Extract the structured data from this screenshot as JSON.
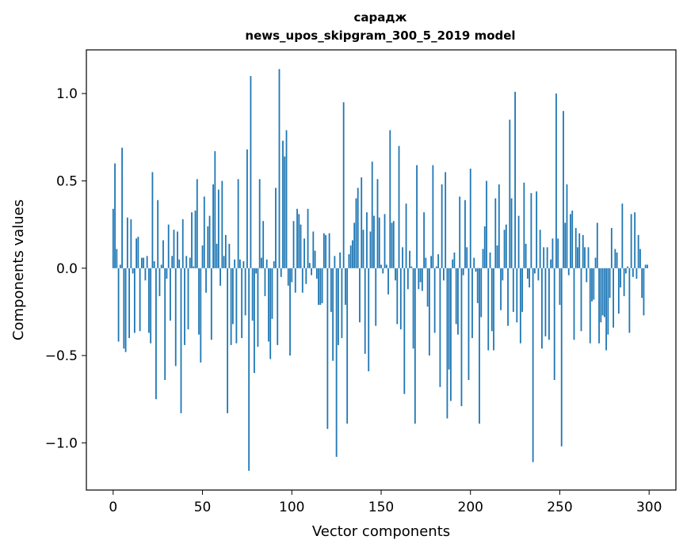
{
  "chart_data": {
    "type": "bar",
    "title": "сарадж",
    "subtitle": "news_upos_skipgram_300_5_2019 model",
    "xlabel": "Vector components",
    "ylabel": "Components values",
    "xlim": [
      -15,
      315
    ],
    "ylim": [
      -1.27,
      1.25
    ],
    "xticks": [
      0,
      50,
      100,
      150,
      200,
      250,
      300
    ],
    "yticks": [
      -1.0,
      -0.5,
      0.0,
      0.5,
      1.0
    ],
    "ytick_labels": [
      "−1.0",
      "−0.5",
      "0.0",
      "0.5",
      "1.0"
    ],
    "bar_color": "#1f77b4",
    "grid": false,
    "values": [
      0.34,
      0.6,
      0.11,
      -0.42,
      0.02,
      0.69,
      -0.46,
      -0.48,
      0.29,
      -0.4,
      0.28,
      -0.03,
      -0.37,
      0.17,
      0.18,
      -0.36,
      0.06,
      0.06,
      -0.07,
      0.07,
      -0.37,
      -0.43,
      0.55,
      0.04,
      -0.75,
      0.39,
      -0.16,
      0.02,
      0.16,
      -0.64,
      -0.06,
      0.25,
      -0.3,
      0.07,
      0.22,
      -0.56,
      0.21,
      0.05,
      -0.83,
      0.28,
      -0.44,
      0.07,
      -0.35,
      0.06,
      0.32,
      0.01,
      0.33,
      0.51,
      -0.38,
      -0.54,
      0.13,
      0.41,
      -0.14,
      0.24,
      0.3,
      -0.41,
      0.48,
      0.67,
      0.14,
      0.45,
      -0.1,
      0.5,
      0.07,
      0.19,
      -0.83,
      0.14,
      -0.44,
      -0.32,
      0.05,
      -0.43,
      0.51,
      0.05,
      -0.4,
      0.04,
      -0.27,
      0.68,
      -1.16,
      1.1,
      -0.3,
      -0.6,
      -0.03,
      -0.45,
      0.51,
      0.06,
      0.27,
      -0.16,
      0.05,
      -0.42,
      -0.52,
      -0.29,
      0.04,
      0.46,
      -0.44,
      1.14,
      -0.05,
      0.73,
      0.64,
      0.79,
      -0.1,
      -0.5,
      -0.08,
      0.27,
      -0.14,
      0.34,
      0.31,
      0.25,
      -0.14,
      0.17,
      -0.09,
      0.34,
      0.03,
      -0.04,
      0.21,
      0.1,
      -0.06,
      -0.21,
      -0.21,
      -0.2,
      0.2,
      0.19,
      -0.92,
      0.2,
      -0.25,
      -0.53,
      0.07,
      -1.08,
      -0.44,
      0.09,
      -0.4,
      0.95,
      -0.21,
      -0.89,
      0.08,
      0.13,
      0.16,
      0.26,
      0.4,
      0.46,
      -0.31,
      0.52,
      0.22,
      -0.49,
      0.32,
      -0.59,
      0.21,
      0.61,
      0.3,
      -0.33,
      0.51,
      0.29,
      0.02,
      -0.03,
      0.31,
      0.02,
      -0.15,
      0.79,
      0.26,
      0.27,
      -0.07,
      -0.32,
      0.7,
      -0.35,
      0.12,
      -0.72,
      0.37,
      -0.12,
      0.1,
      0.01,
      -0.46,
      -0.89,
      0.59,
      -0.12,
      -0.08,
      -0.13,
      0.32,
      0.06,
      -0.22,
      -0.5,
      0.07,
      0.59,
      -0.37,
      0.01,
      0.08,
      -0.68,
      0.48,
      -0.07,
      0.55,
      -0.86,
      -0.58,
      -0.76,
      0.05,
      0.09,
      -0.32,
      -0.38,
      0.41,
      -0.79,
      -0.04,
      0.39,
      0.12,
      -0.64,
      0.57,
      -0.4,
      0.06,
      -0.02,
      -0.2,
      -0.89,
      -0.28,
      0.11,
      0.24,
      0.5,
      -0.47,
      0.09,
      -0.36,
      -0.47,
      0.4,
      0.13,
      0.48,
      -0.24,
      -0.07,
      0.22,
      0.25,
      -0.33,
      0.85,
      0.4,
      -0.25,
      1.01,
      -0.31,
      0.3,
      -0.43,
      -0.25,
      0.49,
      0.14,
      -0.06,
      -0.11,
      0.43,
      -1.11,
      -0.03,
      0.44,
      -0.07,
      0.22,
      -0.46,
      0.12,
      -0.39,
      0.12,
      -0.41,
      0.05,
      0.17,
      -0.64,
      1.0,
      0.17,
      -0.21,
      -1.02,
      0.9,
      0.26,
      0.48,
      -0.04,
      0.31,
      0.33,
      -0.41,
      0.23,
      0.12,
      0.2,
      -0.36,
      0.19,
      0.12,
      -0.08,
      0.12,
      -0.43,
      -0.19,
      -0.18,
      0.06,
      0.26,
      -0.43,
      -0.31,
      -0.27,
      -0.28,
      -0.47,
      -0.38,
      -0.17,
      0.23,
      -0.34,
      0.11,
      0.09,
      -0.26,
      -0.11,
      0.37,
      -0.16,
      -0.03,
      0.01,
      -0.37,
      0.31,
      -0.05,
      0.32,
      -0.06,
      0.19,
      0.11,
      -0.17,
      -0.27,
      0.02,
      0.02
    ]
  }
}
